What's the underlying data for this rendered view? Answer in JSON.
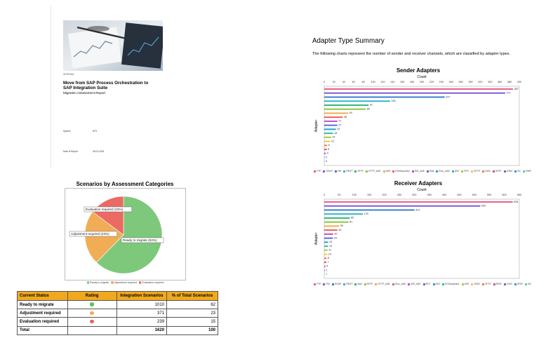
{
  "cover": {
    "classification": "INTERNAL",
    "title_line1": "Move from SAP Process Orchestration to",
    "title_line2": "SAP Integration Suite",
    "subtitle": "Migration Assessment Report",
    "system_label": "System",
    "system_value": "N73",
    "date_label": "Date of Report",
    "date_value": "28-01-2024"
  },
  "pie": {
    "title": "Scenarios by Assessment Categories",
    "labels": [
      "Ready to migrate (62%)",
      "Adjustment required (23%)",
      "Evaluation required (15%)"
    ],
    "legend": [
      "Ready to migrate",
      "Adjustment required",
      "Evaluation required"
    ],
    "colors": [
      "#7dc87a",
      "#f0ad55",
      "#ec6a64"
    ]
  },
  "table": {
    "headers": [
      "Current Status",
      "Rating",
      "Integration Scenarios",
      "% of Total Scenarios"
    ],
    "rows": [
      {
        "status": "Ready to migrate",
        "color": "#5cbf60",
        "scenarios": "1010",
        "percent": "62"
      },
      {
        "status": "Adjustment required",
        "color": "#f0ad55",
        "scenarios": "371",
        "percent": "23"
      },
      {
        "status": "Evaluation required",
        "color": "#e8625c",
        "scenarios": "239",
        "percent": "15"
      }
    ],
    "total": {
      "label": "Total",
      "scenarios": "1620",
      "percent": "100"
    }
  },
  "summary": {
    "heading": "Adapter Type Summary",
    "description": "The following charts represent the number of sender and receiver channels, which are classified by adapter types."
  },
  "chart_data": [
    {
      "type": "pie",
      "title": "Scenarios by Assessment Categories",
      "categories": [
        "Ready to migrate",
        "Adjustment required",
        "Evaluation required"
      ],
      "values": [
        1010,
        371,
        239
      ],
      "percent_labels": [
        "62%",
        "23%",
        "15%"
      ]
    },
    {
      "type": "bar",
      "orientation": "horizontal",
      "title": "Sender Adapters",
      "xlabel": "Count",
      "ylabel": "Adapter",
      "xlim": [
        0,
        400
      ],
      "xticks": [
        0,
        20,
        40,
        60,
        80,
        100,
        120,
        140,
        160,
        180,
        200,
        220,
        240,
        260,
        280,
        300,
        320,
        340,
        360,
        380,
        400
      ],
      "values": [
        387,
        371,
        247,
        135,
        91,
        85,
        49,
        38,
        27,
        27,
        24,
        18,
        14,
        12,
        6,
        5,
        3,
        0,
        0
      ],
      "legend": [
        "FTP",
        "SOAP",
        "File",
        "REST",
        "SFTP",
        "HTTP_AAE",
        "JMS",
        "EDISeparator",
        "WS_AAE",
        "Mail",
        "IDoc_AAE",
        "AS2",
        "RFC",
        "SFTP",
        "X400",
        "SFSF",
        "JDBC",
        "BC",
        "RNIF"
      ]
    },
    {
      "type": "bar",
      "orientation": "horizontal",
      "title": "Receiver Adapters",
      "xlabel": "Count",
      "ylabel": "Adapter",
      "xlim": [
        0,
        650
      ],
      "xticks": [
        0,
        50,
        100,
        150,
        200,
        250,
        300,
        350,
        400,
        450,
        500,
        550,
        600,
        650
      ],
      "values": [
        628,
        520,
        301,
        129,
        85,
        81,
        50,
        44,
        30,
        29,
        13,
        13,
        11,
        10,
        8,
        7,
        4,
        2,
        1
      ],
      "legend": [
        "FTP",
        "File",
        "SOAP",
        "REST",
        "Mail",
        "SFTP",
        "HTTP_AAE",
        "IDoc_AAE",
        "WS_AAE",
        "RFC",
        "AS2",
        "EDISeparator",
        "JMS",
        "JDBC",
        "SFTP",
        "RNIF",
        "X400",
        "SFSF",
        "BC"
      ]
    }
  ],
  "colors": [
    "#e8618a",
    "#7d5bd6",
    "#3c7fd0",
    "#36b5c8",
    "#34b87c",
    "#8dc63f",
    "#f0ad4e",
    "#e8625c",
    "#c04fc7",
    "#5b6ed6",
    "#2a9fd8",
    "#2fbfa0",
    "#b0c93a",
    "#f0c73f",
    "#ef7f3c",
    "#d94f70",
    "#9a55c9",
    "#4a8fe0",
    "#5ec8c0"
  ]
}
